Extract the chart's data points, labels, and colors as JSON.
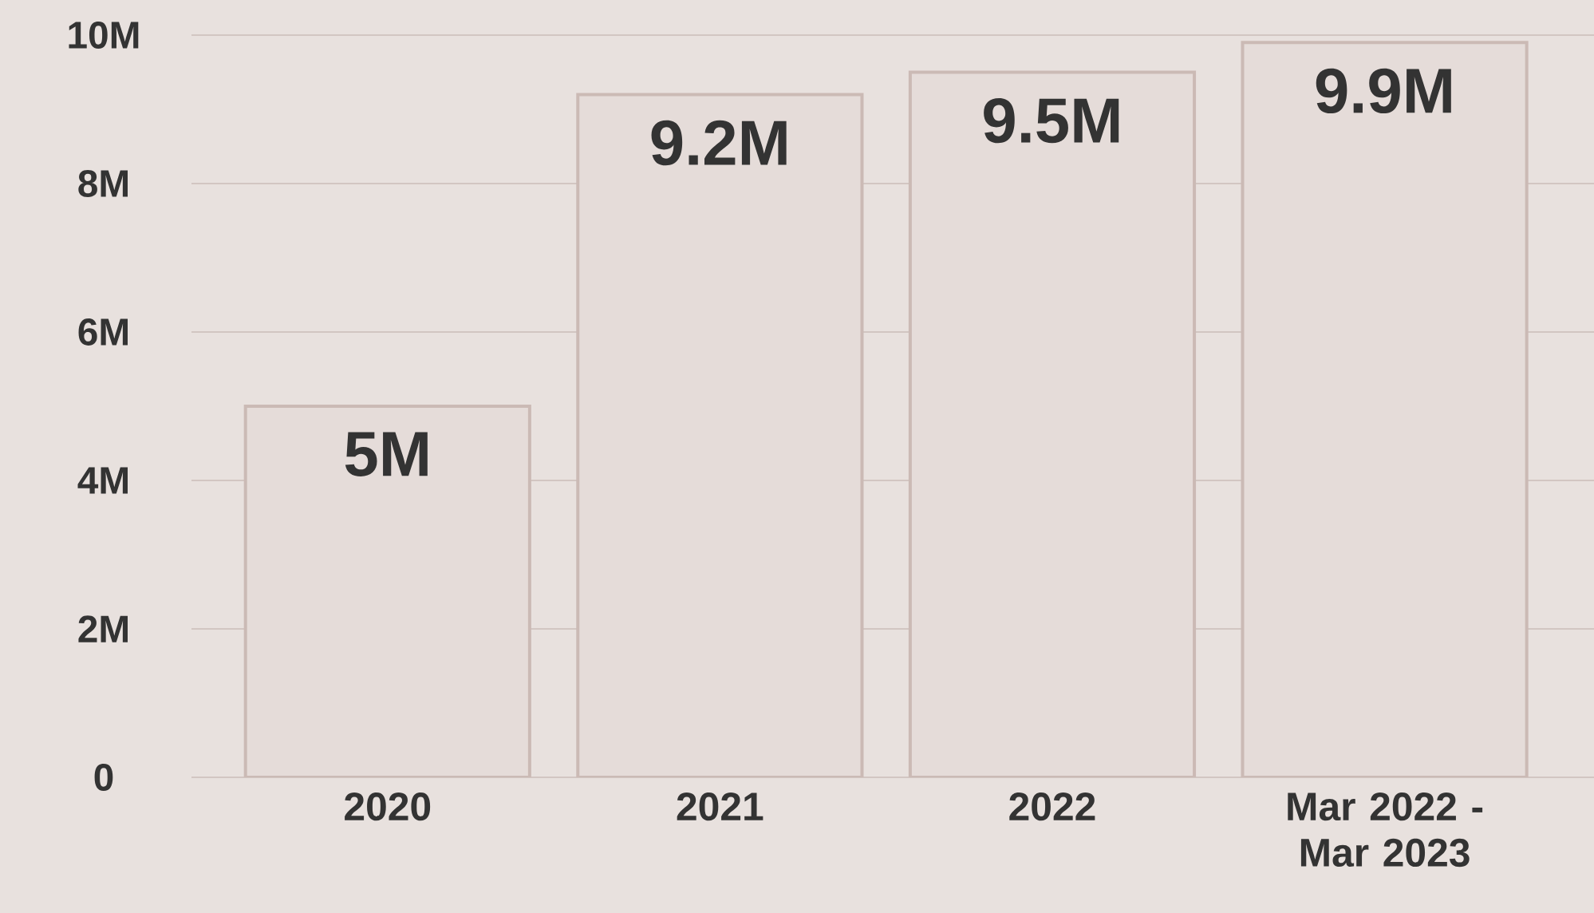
{
  "chart_data": {
    "type": "bar",
    "categories": [
      "2020",
      "2021",
      "2022",
      "Mar 2022 - Mar 2023"
    ],
    "values": [
      5,
      9.2,
      9.5,
      9.9
    ],
    "value_labels": [
      "5M",
      "9.2M",
      "9.5M",
      "9.9M"
    ],
    "color": "#e5dcd9",
    "ylim": [
      0,
      10
    ],
    "yticks": [
      0,
      {
        "value": 2,
        "label": "2M"
      },
      {
        "value": 4,
        "label": "4M"
      },
      {
        "value": 6,
        "label": "6M"
      },
      {
        "value": 8,
        "label": "8M"
      },
      {
        "value": 10,
        "label": "10M"
      }
    ],
    "grid": "y"
  }
}
